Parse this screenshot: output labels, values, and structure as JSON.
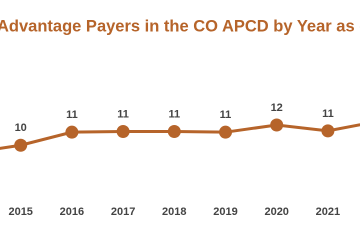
{
  "chart_data": {
    "type": "line",
    "title": "Advantage Payers in the CO APCD by Year as of",
    "categories": [
      null,
      "2015",
      "2016",
      "2017",
      "2018",
      "2019",
      "2020",
      "2021",
      null
    ],
    "series": [
      {
        "color": "#b6642a",
        "values": [
          9.4,
          10.0,
          11.0,
          11.05,
          11.05,
          11.0,
          11.55,
          11.1,
          11.85
        ],
        "value_labels": [
          null,
          "10",
          "11",
          "11",
          "11",
          "11",
          "12",
          "11",
          null
        ]
      }
    ],
    "ylim": [
      5.8,
      19.6
    ]
  }
}
